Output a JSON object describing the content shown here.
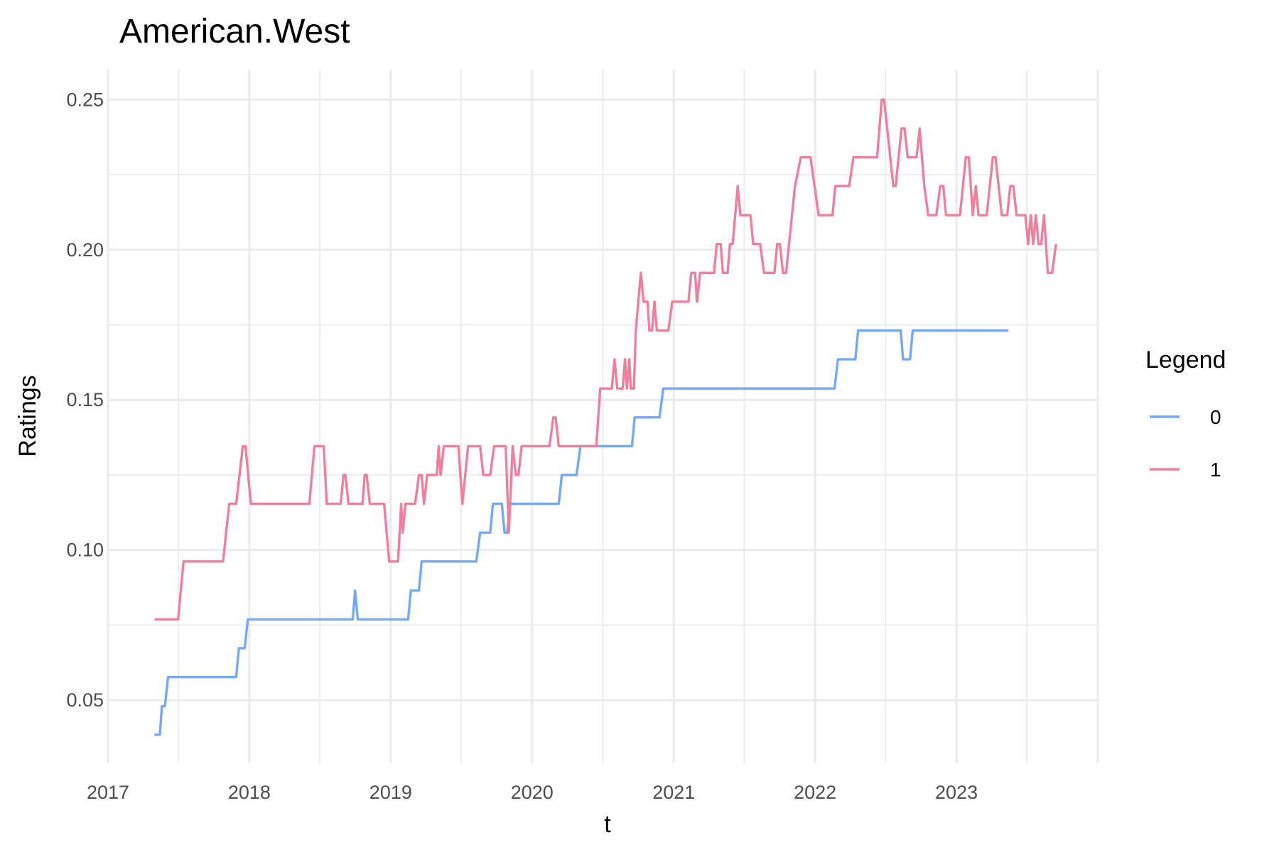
{
  "chart_data": {
    "type": "line",
    "title": "American.West",
    "xlabel": "t",
    "ylabel": "Ratings",
    "x_ticks": [
      "2017",
      "2018",
      "2019",
      "2020",
      "2021",
      "2022",
      "2023"
    ],
    "y_ticks": [
      "0.05",
      "0.10",
      "0.15",
      "0.20",
      "0.25"
    ],
    "xlim": [
      "2017-01-01",
      "2024-01-01"
    ],
    "ylim": [
      0.029,
      0.26
    ],
    "grid": true,
    "legend": {
      "title": "Legend",
      "placement": "right"
    },
    "series": [
      {
        "name": "0",
        "color": "#74a9f5",
        "points": [
          [
            "2017-05-01",
            0.0385
          ],
          [
            "2017-05-15",
            0.0385
          ],
          [
            "2017-05-20",
            0.048
          ],
          [
            "2017-05-28",
            0.048
          ],
          [
            "2017-06-05",
            0.0577
          ],
          [
            "2017-11-28",
            0.0577
          ],
          [
            "2017-12-05",
            0.0673
          ],
          [
            "2017-12-20",
            0.0673
          ],
          [
            "2017-12-28",
            0.0769
          ],
          [
            "2018-09-25",
            0.0769
          ],
          [
            "2018-10-01",
            0.0865
          ],
          [
            "2018-10-08",
            0.0769
          ],
          [
            "2019-02-15",
            0.0769
          ],
          [
            "2019-02-22",
            0.0865
          ],
          [
            "2019-03-15",
            0.0865
          ],
          [
            "2019-03-22",
            0.0962
          ],
          [
            "2019-08-10",
            0.0962
          ],
          [
            "2019-08-20",
            0.1058
          ],
          [
            "2019-09-15",
            0.1058
          ],
          [
            "2019-09-22",
            0.1154
          ],
          [
            "2019-10-15",
            0.1154
          ],
          [
            "2019-10-22",
            0.1058
          ],
          [
            "2019-10-29",
            0.1058
          ],
          [
            "2019-11-05",
            0.1154
          ],
          [
            "2020-03-10",
            0.1154
          ],
          [
            "2020-03-18",
            0.125
          ],
          [
            "2020-04-25",
            0.125
          ],
          [
            "2020-05-05",
            0.1346
          ],
          [
            "2020-09-15",
            0.1346
          ],
          [
            "2020-09-22",
            0.1442
          ],
          [
            "2020-11-25",
            0.1442
          ],
          [
            "2020-12-05",
            0.1538
          ],
          [
            "2022-02-20",
            0.1538
          ],
          [
            "2022-03-01",
            0.1635
          ],
          [
            "2022-04-15",
            0.1635
          ],
          [
            "2022-04-22",
            0.1731
          ],
          [
            "2022-08-10",
            0.1731
          ],
          [
            "2022-08-16",
            0.1635
          ],
          [
            "2022-09-03",
            0.1635
          ],
          [
            "2022-09-10",
            0.1731
          ],
          [
            "2023-05-15",
            0.1731
          ]
        ]
      },
      {
        "name": "1",
        "color": "#f07f9e",
        "points": [
          [
            "2017-05-01",
            0.0769
          ],
          [
            "2017-07-01",
            0.0769
          ],
          [
            "2017-07-15",
            0.0962
          ],
          [
            "2017-10-25",
            0.0962
          ],
          [
            "2017-11-10",
            0.1154
          ],
          [
            "2017-11-28",
            0.1154
          ],
          [
            "2017-12-15",
            0.1346
          ],
          [
            "2017-12-22",
            0.1346
          ],
          [
            "2018-01-05",
            0.1154
          ],
          [
            "2018-06-05",
            0.1154
          ],
          [
            "2018-06-18",
            0.1346
          ],
          [
            "2018-07-12",
            0.1346
          ],
          [
            "2018-07-20",
            0.1154
          ],
          [
            "2018-08-25",
            0.1154
          ],
          [
            "2018-09-01",
            0.125
          ],
          [
            "2018-09-06",
            0.125
          ],
          [
            "2018-09-14",
            0.1154
          ],
          [
            "2018-10-20",
            0.1154
          ],
          [
            "2018-10-26",
            0.125
          ],
          [
            "2018-10-31",
            0.125
          ],
          [
            "2018-11-08",
            0.1154
          ],
          [
            "2018-12-15",
            0.1154
          ],
          [
            "2018-12-28",
            0.0962
          ],
          [
            "2019-01-20",
            0.0962
          ],
          [
            "2019-01-28",
            0.1154
          ],
          [
            "2019-02-01",
            0.1058
          ],
          [
            "2019-02-08",
            0.1154
          ],
          [
            "2019-03-05",
            0.1154
          ],
          [
            "2019-03-15",
            0.125
          ],
          [
            "2019-03-22",
            0.125
          ],
          [
            "2019-03-28",
            0.1154
          ],
          [
            "2019-04-05",
            0.125
          ],
          [
            "2019-04-30",
            0.125
          ],
          [
            "2019-05-05",
            0.1346
          ],
          [
            "2019-05-10",
            0.125
          ],
          [
            "2019-05-18",
            0.1346
          ],
          [
            "2019-06-25",
            0.1346
          ],
          [
            "2019-07-05",
            0.1154
          ],
          [
            "2019-07-20",
            0.1346
          ],
          [
            "2019-08-20",
            0.1346
          ],
          [
            "2019-08-28",
            0.125
          ],
          [
            "2019-09-15",
            0.125
          ],
          [
            "2019-09-25",
            0.1346
          ],
          [
            "2019-10-25",
            0.1346
          ],
          [
            "2019-11-02",
            0.1058
          ],
          [
            "2019-11-12",
            0.1346
          ],
          [
            "2019-11-20",
            0.125
          ],
          [
            "2019-11-27",
            0.125
          ],
          [
            "2019-12-05",
            0.1346
          ],
          [
            "2020-02-15",
            0.1346
          ],
          [
            "2020-02-25",
            0.1442
          ],
          [
            "2020-03-02",
            0.1442
          ],
          [
            "2020-03-10",
            0.1346
          ],
          [
            "2020-06-15",
            0.1346
          ],
          [
            "2020-06-25",
            0.1538
          ],
          [
            "2020-07-25",
            0.1538
          ],
          [
            "2020-08-01",
            0.1635
          ],
          [
            "2020-08-08",
            0.1538
          ],
          [
            "2020-08-22",
            0.1538
          ],
          [
            "2020-08-28",
            0.1635
          ],
          [
            "2020-09-02",
            0.1538
          ],
          [
            "2020-09-08",
            0.1635
          ],
          [
            "2020-09-12",
            0.1538
          ],
          [
            "2020-09-20",
            0.1538
          ],
          [
            "2020-09-25",
            0.1731
          ],
          [
            "2020-10-08",
            0.1923
          ],
          [
            "2020-10-15",
            0.1827
          ],
          [
            "2020-10-25",
            0.1827
          ],
          [
            "2020-10-30",
            0.1731
          ],
          [
            "2020-11-06",
            0.1731
          ],
          [
            "2020-11-12",
            0.1827
          ],
          [
            "2020-11-18",
            0.1731
          ],
          [
            "2020-12-18",
            0.1731
          ],
          [
            "2020-12-28",
            0.1827
          ],
          [
            "2021-02-08",
            0.1827
          ],
          [
            "2021-02-15",
            0.1923
          ],
          [
            "2021-02-25",
            0.1923
          ],
          [
            "2021-03-02",
            0.1827
          ],
          [
            "2021-03-10",
            0.1923
          ],
          [
            "2021-04-15",
            0.1923
          ],
          [
            "2021-04-22",
            0.2019
          ],
          [
            "2021-05-02",
            0.2019
          ],
          [
            "2021-05-08",
            0.1923
          ],
          [
            "2021-05-20",
            0.1923
          ],
          [
            "2021-05-26",
            0.2019
          ],
          [
            "2021-06-02",
            0.2019
          ],
          [
            "2021-06-15",
            0.2212
          ],
          [
            "2021-06-22",
            0.2115
          ],
          [
            "2021-07-18",
            0.2115
          ],
          [
            "2021-07-25",
            0.2019
          ],
          [
            "2021-08-12",
            0.2019
          ],
          [
            "2021-08-22",
            0.1923
          ],
          [
            "2021-09-18",
            0.1923
          ],
          [
            "2021-09-25",
            0.2019
          ],
          [
            "2021-10-02",
            0.2019
          ],
          [
            "2021-10-10",
            0.1923
          ],
          [
            "2021-10-18",
            0.1923
          ],
          [
            "2021-11-10",
            0.2212
          ],
          [
            "2021-11-25",
            0.2308
          ],
          [
            "2021-12-20",
            0.2308
          ],
          [
            "2022-01-10",
            0.2115
          ],
          [
            "2022-02-15",
            0.2115
          ],
          [
            "2022-02-22",
            0.2212
          ],
          [
            "2022-03-30",
            0.2212
          ],
          [
            "2022-04-10",
            0.2308
          ],
          [
            "2022-06-10",
            0.2308
          ],
          [
            "2022-06-22",
            0.25
          ],
          [
            "2022-06-28",
            0.25
          ],
          [
            "2022-07-22",
            0.2212
          ],
          [
            "2022-07-28",
            0.2212
          ],
          [
            "2022-08-12",
            0.2404
          ],
          [
            "2022-08-20",
            0.2404
          ],
          [
            "2022-08-28",
            0.2308
          ],
          [
            "2022-09-20",
            0.2308
          ],
          [
            "2022-09-28",
            0.2404
          ],
          [
            "2022-10-10",
            0.2212
          ],
          [
            "2022-10-20",
            0.2115
          ],
          [
            "2022-11-10",
            0.2115
          ],
          [
            "2022-11-20",
            0.2212
          ],
          [
            "2022-11-28",
            0.2212
          ],
          [
            "2022-12-05",
            0.2115
          ],
          [
            "2023-01-10",
            0.2115
          ],
          [
            "2023-01-25",
            0.2308
          ],
          [
            "2023-02-02",
            0.2308
          ],
          [
            "2023-02-12",
            0.2115
          ],
          [
            "2023-02-20",
            0.2212
          ],
          [
            "2023-02-27",
            0.2115
          ],
          [
            "2023-03-20",
            0.2115
          ],
          [
            "2023-04-05",
            0.2308
          ],
          [
            "2023-04-12",
            0.2308
          ],
          [
            "2023-04-28",
            0.2115
          ],
          [
            "2023-05-12",
            0.2115
          ],
          [
            "2023-05-20",
            0.2212
          ],
          [
            "2023-05-28",
            0.2212
          ],
          [
            "2023-06-05",
            0.2115
          ],
          [
            "2023-06-28",
            0.2115
          ],
          [
            "2023-07-05",
            0.2019
          ],
          [
            "2023-07-12",
            0.2115
          ],
          [
            "2023-07-18",
            0.2019
          ],
          [
            "2023-07-25",
            0.2115
          ],
          [
            "2023-08-01",
            0.2019
          ],
          [
            "2023-08-08",
            0.2019
          ],
          [
            "2023-08-15",
            0.2115
          ],
          [
            "2023-08-25",
            0.1923
          ],
          [
            "2023-09-05",
            0.1923
          ],
          [
            "2023-09-15",
            0.2019
          ]
        ]
      }
    ]
  }
}
